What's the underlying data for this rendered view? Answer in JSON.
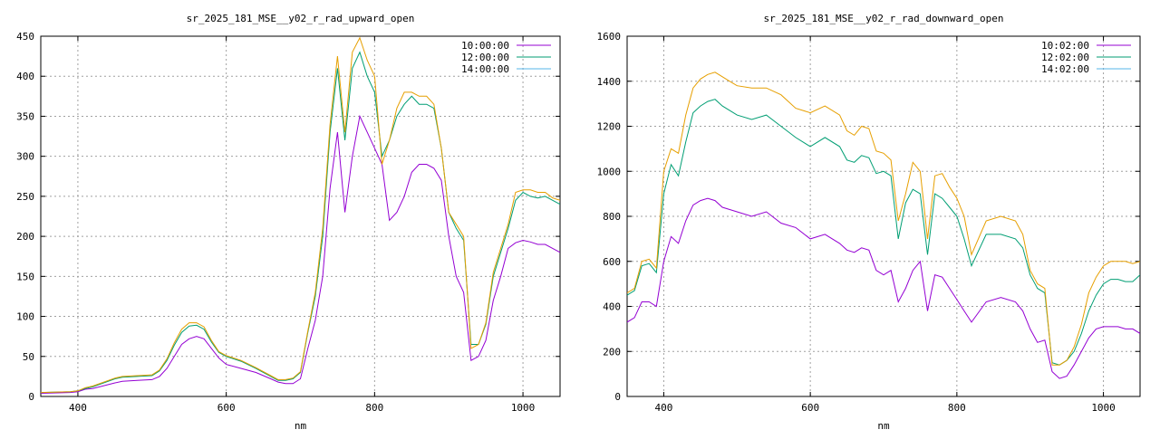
{
  "chart_data": [
    {
      "type": "line",
      "title": "sr_2025_181_MSE__y02_r_rad_upward_open",
      "xlabel": "nm",
      "ylabel": "",
      "xlim": [
        350,
        1050
      ],
      "ylim": [
        0,
        450
      ],
      "xticks": [
        400,
        600,
        800,
        1000
      ],
      "yticks": [
        0,
        50,
        100,
        150,
        200,
        250,
        300,
        350,
        400,
        450
      ],
      "grid": true,
      "legend_position": "top-right",
      "series": [
        {
          "name": "10:00:00",
          "color": "#9400d3",
          "x": [
            350,
            390,
            400,
            410,
            420,
            450,
            460,
            480,
            500,
            510,
            520,
            530,
            540,
            550,
            560,
            570,
            580,
            590,
            600,
            620,
            640,
            660,
            670,
            680,
            690,
            700,
            710,
            720,
            730,
            740,
            750,
            760,
            770,
            780,
            790,
            800,
            810,
            820,
            830,
            840,
            850,
            860,
            870,
            880,
            890,
            900,
            910,
            920,
            930,
            940,
            950,
            960,
            970,
            980,
            990,
            1000,
            1010,
            1020,
            1030,
            1040,
            1050
          ],
          "y": [
            4,
            5,
            6,
            9,
            10,
            17,
            19,
            20,
            21,
            25,
            35,
            50,
            65,
            72,
            75,
            72,
            60,
            48,
            40,
            35,
            30,
            22,
            18,
            16,
            16,
            22,
            60,
            95,
            150,
            260,
            330,
            230,
            300,
            350,
            330,
            310,
            290,
            220,
            230,
            250,
            280,
            290,
            290,
            285,
            270,
            200,
            150,
            130,
            45,
            50,
            70,
            120,
            150,
            185,
            192,
            195,
            193,
            190,
            190,
            185,
            180
          ]
        },
        {
          "name": "12:00:00",
          "color": "#009e73",
          "x": [
            350,
            390,
            400,
            410,
            420,
            450,
            460,
            480,
            500,
            510,
            520,
            530,
            540,
            550,
            560,
            570,
            580,
            590,
            600,
            620,
            640,
            660,
            670,
            680,
            690,
            700,
            710,
            720,
            730,
            740,
            750,
            760,
            770,
            780,
            790,
            800,
            810,
            820,
            830,
            840,
            850,
            860,
            870,
            880,
            890,
            900,
            910,
            920,
            930,
            940,
            950,
            960,
            970,
            980,
            990,
            1000,
            1010,
            1020,
            1030,
            1040,
            1050
          ],
          "y": [
            5,
            6,
            7,
            10,
            12,
            22,
            24,
            25,
            26,
            32,
            45,
            64,
            80,
            88,
            89,
            84,
            68,
            55,
            50,
            44,
            35,
            25,
            20,
            20,
            22,
            30,
            80,
            125,
            200,
            330,
            410,
            320,
            410,
            430,
            400,
            380,
            300,
            320,
            350,
            365,
            375,
            365,
            365,
            360,
            310,
            230,
            210,
            195,
            65,
            65,
            90,
            150,
            180,
            210,
            245,
            255,
            250,
            248,
            250,
            245,
            240
          ]
        },
        {
          "name": "14:00:00",
          "color": "#56b4e9",
          "x": [
            350,
            390,
            400,
            410,
            420,
            450,
            460,
            480,
            500,
            510,
            520,
            530,
            540,
            550,
            560,
            570,
            580,
            590,
            600,
            620,
            640,
            660,
            670,
            680,
            690,
            700,
            710,
            720,
            730,
            740,
            750,
            760,
            770,
            780,
            790,
            800,
            810,
            820,
            830,
            840,
            850,
            860,
            870,
            880,
            890,
            900,
            910,
            920,
            930,
            940,
            950,
            960,
            970,
            980,
            990,
            1000,
            1010,
            1020,
            1030,
            1040,
            1050
          ],
          "y": [
            5,
            6,
            7,
            11,
            13,
            23,
            25,
            26,
            27,
            33,
            47,
            67,
            84,
            92,
            92,
            87,
            70,
            56,
            51,
            45,
            36,
            26,
            21,
            21,
            23,
            31,
            82,
            130,
            210,
            340,
            425,
            330,
            430,
            448,
            420,
            400,
            290,
            320,
            360,
            380,
            380,
            375,
            375,
            365,
            310,
            230,
            215,
            200,
            60,
            65,
            92,
            155,
            185,
            215,
            255,
            258,
            258,
            255,
            255,
            248,
            245
          ]
        }
      ]
    },
    {
      "type": "line",
      "title": "sr_2025_181_MSE__y02_r_rad_downward_open",
      "xlabel": "nm",
      "ylabel": "",
      "xlim": [
        350,
        1050
      ],
      "ylim": [
        0,
        1600
      ],
      "xticks": [
        400,
        600,
        800,
        1000
      ],
      "yticks": [
        0,
        200,
        400,
        600,
        800,
        1000,
        1200,
        1400,
        1600
      ],
      "grid": true,
      "legend_position": "top-right",
      "series": [
        {
          "name": "10:02:00",
          "color": "#9400d3",
          "x": [
            350,
            360,
            370,
            380,
            390,
            400,
            410,
            420,
            430,
            440,
            450,
            460,
            470,
            480,
            490,
            500,
            520,
            540,
            560,
            580,
            600,
            620,
            640,
            650,
            660,
            670,
            680,
            690,
            700,
            710,
            720,
            730,
            740,
            750,
            760,
            770,
            780,
            790,
            800,
            810,
            820,
            840,
            860,
            880,
            890,
            900,
            910,
            920,
            930,
            940,
            950,
            960,
            970,
            980,
            990,
            1000,
            1010,
            1020,
            1030,
            1040,
            1050
          ],
          "y": [
            330,
            350,
            420,
            420,
            400,
            600,
            710,
            680,
            780,
            850,
            870,
            880,
            870,
            840,
            830,
            820,
            800,
            820,
            770,
            750,
            700,
            720,
            680,
            650,
            640,
            660,
            650,
            560,
            540,
            560,
            420,
            480,
            560,
            600,
            380,
            540,
            530,
            480,
            430,
            380,
            330,
            420,
            440,
            420,
            380,
            300,
            240,
            250,
            110,
            80,
            90,
            140,
            200,
            260,
            300,
            310,
            310,
            310,
            300,
            300,
            280
          ]
        },
        {
          "name": "12:02:00",
          "color": "#009e73",
          "x": [
            350,
            360,
            370,
            380,
            390,
            400,
            410,
            420,
            430,
            440,
            450,
            460,
            470,
            480,
            490,
            500,
            520,
            540,
            560,
            580,
            600,
            620,
            640,
            650,
            660,
            670,
            680,
            690,
            700,
            710,
            720,
            730,
            740,
            750,
            760,
            770,
            780,
            790,
            800,
            810,
            820,
            840,
            860,
            880,
            890,
            900,
            910,
            920,
            930,
            940,
            950,
            960,
            970,
            980,
            990,
            1000,
            1010,
            1020,
            1030,
            1040,
            1050
          ],
          "y": [
            450,
            470,
            580,
            590,
            550,
            900,
            1030,
            980,
            1130,
            1260,
            1290,
            1310,
            1320,
            1290,
            1270,
            1250,
            1230,
            1250,
            1200,
            1150,
            1110,
            1150,
            1110,
            1050,
            1040,
            1070,
            1060,
            990,
            1000,
            980,
            700,
            860,
            920,
            900,
            630,
            900,
            880,
            840,
            800,
            700,
            580,
            720,
            720,
            700,
            660,
            540,
            480,
            460,
            150,
            140,
            160,
            200,
            280,
            380,
            450,
            500,
            520,
            520,
            510,
            510,
            540
          ]
        },
        {
          "name": "14:02:00",
          "color": "#56b4e9",
          "x": [
            350,
            360,
            370,
            380,
            390,
            400,
            410,
            420,
            430,
            440,
            450,
            460,
            470,
            480,
            490,
            500,
            520,
            540,
            560,
            580,
            600,
            620,
            640,
            650,
            660,
            670,
            680,
            690,
            700,
            710,
            720,
            730,
            740,
            750,
            760,
            770,
            780,
            790,
            800,
            810,
            820,
            840,
            860,
            880,
            890,
            900,
            910,
            920,
            930,
            940,
            950,
            960,
            970,
            980,
            990,
            1000,
            1010,
            1020,
            1030,
            1040,
            1050
          ],
          "y": [
            460,
            480,
            600,
            610,
            570,
            1000,
            1100,
            1080,
            1250,
            1370,
            1410,
            1430,
            1440,
            1420,
            1400,
            1380,
            1370,
            1370,
            1340,
            1280,
            1260,
            1290,
            1250,
            1180,
            1160,
            1200,
            1190,
            1090,
            1080,
            1050,
            780,
            900,
            1040,
            1000,
            700,
            980,
            990,
            930,
            880,
            800,
            630,
            780,
            800,
            780,
            720,
            560,
            500,
            480,
            140,
            140,
            160,
            220,
            320,
            460,
            530,
            580,
            600,
            600,
            600,
            590,
            600
          ]
        }
      ]
    }
  ]
}
